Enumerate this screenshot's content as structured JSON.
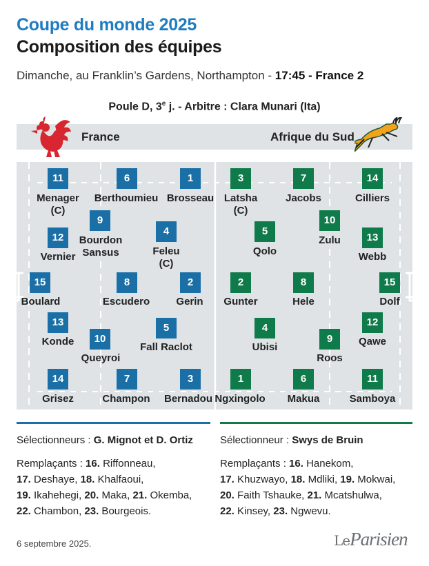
{
  "header": {
    "kicker": "Coupe du monde 2025",
    "title": "Composition des équipes",
    "subtitle_prefix": "Dimanche, au Franklin’s Gardens, Northampton - ",
    "subtitle_time": "17:45",
    "subtitle_sep": " - ",
    "subtitle_channel": "France 2",
    "pool_prefix": "Poule D, 3",
    "pool_sup": "e",
    "pool_suffix": " j. - Arbitre : Clara Munari (Ita)"
  },
  "teams": {
    "home": "France",
    "away": "Afrique du Sud"
  },
  "colors": {
    "france": "#1a6fa6",
    "south_africa": "#0f7a4a",
    "accent": "#1f7cbf",
    "field": "#dfe3e6"
  },
  "players": {
    "france": [
      {
        "num": "11",
        "name": "Menager",
        "sub": "(C)"
      },
      {
        "num": "6",
        "name": "Berthoumieu"
      },
      {
        "num": "1",
        "name": "Brosseau"
      },
      {
        "num": "9",
        "name": "Bourdon",
        "sub": "Sansus"
      },
      {
        "num": "12",
        "name": "Vernier"
      },
      {
        "num": "4",
        "name": "Feleu",
        "sub": "(C)"
      },
      {
        "num": "15",
        "name": "Boulard"
      },
      {
        "num": "8",
        "name": "Escudero"
      },
      {
        "num": "2",
        "name": "Gerin"
      },
      {
        "num": "13",
        "name": "Konde"
      },
      {
        "num": "10",
        "name": "Queyroi"
      },
      {
        "num": "5",
        "name": "Fall Raclot"
      },
      {
        "num": "14",
        "name": "Grisez"
      },
      {
        "num": "7",
        "name": "Champon"
      },
      {
        "num": "3",
        "name": "Bernadou"
      }
    ],
    "south_africa": [
      {
        "num": "3",
        "name": "Latsha",
        "sub": "(C)"
      },
      {
        "num": "7",
        "name": "Jacobs"
      },
      {
        "num": "14",
        "name": "Cilliers"
      },
      {
        "num": "5",
        "name": "Qolo"
      },
      {
        "num": "10",
        "name": "Zulu"
      },
      {
        "num": "13",
        "name": "Webb"
      },
      {
        "num": "2",
        "name": "Gunter"
      },
      {
        "num": "8",
        "name": "Hele"
      },
      {
        "num": "15",
        "name": "Dolf"
      },
      {
        "num": "4",
        "name": "Ubisi"
      },
      {
        "num": "9",
        "name": "Roos"
      },
      {
        "num": "12",
        "name": "Qawe"
      },
      {
        "num": "1",
        "name": "Ngxingolo"
      },
      {
        "num": "6",
        "name": "Makua"
      },
      {
        "num": "11",
        "name": "Samboya"
      }
    ]
  },
  "france_info": {
    "coach_label": "Sélectionneurs : ",
    "coach_names": "G. Mignot et D. Ortiz",
    "subs_label": "Remplaçants : ",
    "subs": [
      {
        "n": "16.",
        "name": " Riffonneau,"
      },
      {
        "n": "17.",
        "name": " Deshaye, "
      },
      {
        "n": "18.",
        "name": " Khalfaoui,"
      },
      {
        "n": "19.",
        "name": " Ikahehegi, "
      },
      {
        "n": "20.",
        "name": " Maka, "
      },
      {
        "n": "21.",
        "name": " Okemba,"
      },
      {
        "n": "22.",
        "name": " Chambon, "
      },
      {
        "n": "23.",
        "name": " Bourgeois."
      }
    ]
  },
  "sa_info": {
    "coach_label": "Sélectionneur : ",
    "coach_names": "Swys de Bruin",
    "subs_label": "Remplaçants : ",
    "subs": [
      {
        "n": "16.",
        "name": " Hanekom,"
      },
      {
        "n": "17.",
        "name": " Khuzwayo, "
      },
      {
        "n": "18.",
        "name": " Mdliki, "
      },
      {
        "n": "19.",
        "name": " Mokwai,"
      },
      {
        "n": "20.",
        "name": " Faith Tshauke, "
      },
      {
        "n": "21.",
        "name": " Mcatshulwa,"
      },
      {
        "n": "22.",
        "name": " Kinsey, "
      },
      {
        "n": "23.",
        "name": " Ngwevu."
      }
    ]
  },
  "footer": {
    "date": "6 septembre 2025.",
    "logo_le": "Le",
    "logo_parisien": "Parisien"
  }
}
